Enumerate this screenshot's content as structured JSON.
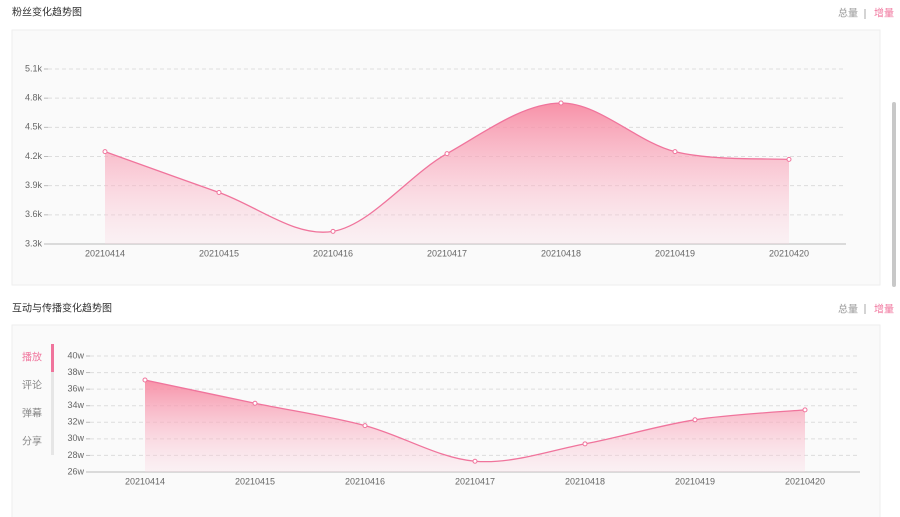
{
  "chart_data": [
    {
      "type": "area",
      "title": "粉丝变化趋势图",
      "toggle": [
        "总量",
        "增量"
      ],
      "categories": [
        "20210414",
        "20210415",
        "20210416",
        "20210417",
        "20210418",
        "20210419",
        "20210420"
      ],
      "values": [
        4250,
        3830,
        3430,
        4230,
        4750,
        4250,
        4170
      ],
      "color": "#f0749c",
      "ylim": [
        3300,
        5100
      ],
      "yticks": [
        {
          "value": 3300,
          "label": "3.3k"
        },
        {
          "value": 3600,
          "label": "3.6k"
        },
        {
          "value": 3900,
          "label": "3.9k"
        },
        {
          "value": 4200,
          "label": "4.2k"
        },
        {
          "value": 4500,
          "label": "4.5k"
        },
        {
          "value": 4800,
          "label": "4.8k"
        },
        {
          "value": 5100,
          "label": "5.1k"
        }
      ],
      "grid": true
    },
    {
      "type": "area",
      "title": "互动与传播变化趋势图",
      "toggle": [
        "总量",
        "增量"
      ],
      "tabs": [
        "播放",
        "评论",
        "弹幕",
        "分享"
      ],
      "categories": [
        "20210414",
        "20210415",
        "20210416",
        "20210417",
        "20210418",
        "20210419",
        "20210420"
      ],
      "values": [
        37.1,
        34.3,
        31.6,
        27.3,
        29.4,
        32.3,
        33.5
      ],
      "color": "#f0749c",
      "ylim": [
        26,
        40
      ],
      "yticks": [
        {
          "value": 26,
          "label": "26w"
        },
        {
          "value": 28,
          "label": "28w"
        },
        {
          "value": 30,
          "label": "30w"
        },
        {
          "value": 32,
          "label": "32w"
        },
        {
          "value": 34,
          "label": "34w"
        },
        {
          "value": 36,
          "label": "36w"
        },
        {
          "value": 38,
          "label": "38w"
        },
        {
          "value": 40,
          "label": "40w"
        }
      ],
      "grid": true
    }
  ]
}
